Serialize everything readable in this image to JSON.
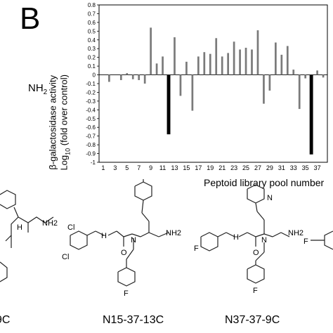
{
  "panel_label": "B",
  "amide_label": "NH",
  "amide_subscript": "2",
  "chart_data": {
    "type": "bar",
    "ylabel_line1": "β-galactosidase activity",
    "ylabel_line2_prefix": "Log",
    "ylabel_line2_sub": "10",
    "ylabel_line2_suffix": " (fold over control)",
    "xlabel": "Peptoid library pool number",
    "ylim": [
      -1,
      0.8
    ],
    "yticks": [
      0.8,
      0.7,
      0.6,
      0.5,
      0.4,
      0.3,
      0.2,
      0.1,
      0,
      -0.1,
      -0.2,
      -0.3,
      -0.4,
      -0.5,
      -0.6,
      -0.7,
      -0.8,
      -0.9,
      -1
    ],
    "ytick_labels": [
      "0.8",
      "0.7",
      "0.6",
      "0.5",
      "0.4",
      "0.3",
      "0.2",
      "0.1",
      "0",
      "-0.1",
      "-0.2",
      "-0.3",
      "-0.4",
      "-0.5",
      "-0.6",
      "-0.7",
      "-0.8",
      "-0.9",
      "-1"
    ],
    "xtick_labels": [
      "1",
      "3",
      "5",
      "7",
      "9",
      "11",
      "13",
      "15",
      "17",
      "19",
      "21",
      "23",
      "25",
      "27",
      "29",
      "31",
      "33",
      "35",
      "37"
    ],
    "categories": [
      1,
      2,
      3,
      4,
      5,
      6,
      7,
      8,
      9,
      10,
      11,
      12,
      13,
      14,
      15,
      16,
      17,
      18,
      19,
      20,
      21,
      22,
      23,
      24,
      25,
      26,
      27,
      28,
      29,
      30,
      31,
      32,
      33,
      34,
      35,
      36,
      37,
      38
    ],
    "values": [
      0,
      -0.08,
      0,
      -0.06,
      0.02,
      -0.05,
      -0.06,
      -0.1,
      0.54,
      0.13,
      0.21,
      -0.68,
      0.43,
      -0.24,
      0.15,
      -0.41,
      0.21,
      0.26,
      0.24,
      0.42,
      0.21,
      0.25,
      0.38,
      0.29,
      0.31,
      0.29,
      0.51,
      -0.33,
      -0.18,
      0.37,
      0.23,
      0.33,
      0.06,
      -0.39,
      -0.04,
      -0.91,
      0.05,
      -0.03
    ],
    "highlight_categories": [
      12,
      36
    ],
    "colors": {
      "normal": "#7a7a7a",
      "highlight": "#000000"
    }
  },
  "compounds": [
    "9C",
    "N15-37-13C",
    "N37-37-9C"
  ],
  "atoms": {
    "cl": "Cl",
    "f": "F",
    "o": "O",
    "h": "H",
    "n": "N",
    "nh": "NH",
    "nh2": "NH2"
  }
}
